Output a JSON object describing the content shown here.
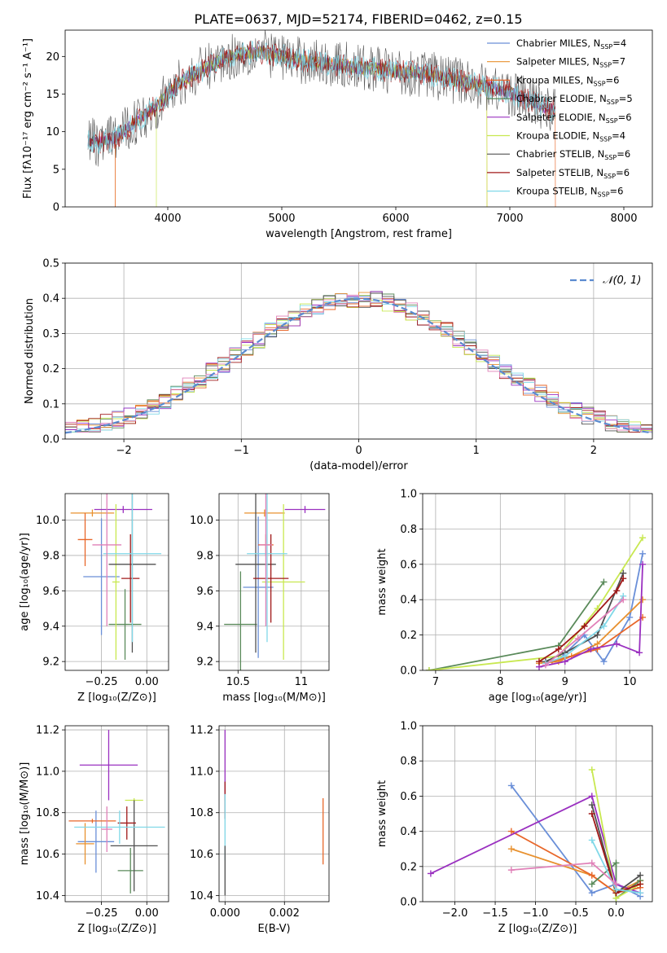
{
  "figure": {
    "title": "PLATE=0637, MJD=52174, FIBERID=0462, z=0.15",
    "colors": {
      "Chabrier MILES": "#6a8fd8",
      "Salpeter MILES": "#e8912f",
      "Kroupa MILES": "#e8672a",
      "Chabrier ELODIE": "#5a8a5a",
      "Salpeter ELODIE": "#9a30c0",
      "Kroupa ELODIE": "#c8e850",
      "Chabrier STELIB": "#505050",
      "Salpeter STELIB": "#a01818",
      "Kroupa STELIB": "#80d8e8",
      "pink": "#e080b8"
    }
  },
  "chart_data": [
    {
      "id": "spectrum",
      "type": "line",
      "xlabel": "wavelength [Angstrom, rest frame]",
      "ylabel": "Flux [fλ10⁻¹⁷ erg cm⁻² s⁻¹ A⁻¹]",
      "xlim": [
        3100,
        8250
      ],
      "ylim": [
        0,
        23.5
      ],
      "xticks": [
        4000,
        5000,
        6000,
        7000,
        8000
      ],
      "yticks": [
        0,
        5,
        10,
        15,
        20
      ],
      "grid": false,
      "legend_position": "top-right",
      "legend": [
        {
          "name": "Chabrier MILES, N",
          "sub": "SSP",
          "eq": "=4"
        },
        {
          "name": "Salpeter MILES, N",
          "sub": "SSP",
          "eq": "=7"
        },
        {
          "name": "Kroupa MILES, N",
          "sub": "SSP",
          "eq": "=6"
        },
        {
          "name": "Chabrier ELODIE, N",
          "sub": "SSP",
          "eq": "=5"
        },
        {
          "name": "Salpeter ELODIE, N",
          "sub": "SSP",
          "eq": "=6"
        },
        {
          "name": "Kroupa ELODIE, N",
          "sub": "SSP",
          "eq": "=4"
        },
        {
          "name": "Chabrier STELIB, N",
          "sub": "SSP",
          "eq": "=6"
        },
        {
          "name": "Salpeter STELIB, N",
          "sub": "SSP",
          "eq": "=6"
        },
        {
          "name": "Kroupa STELIB, N",
          "sub": "SSP",
          "eq": "=6"
        }
      ],
      "series_keys": [
        "Chabrier MILES",
        "Salpeter MILES",
        "Kroupa MILES",
        "Chabrier ELODIE",
        "Salpeter ELODIE",
        "Kroupa ELODIE",
        "Chabrier STELIB",
        "Salpeter STELIB",
        "Kroupa STELIB"
      ],
      "x": [
        3300,
        3400,
        3500,
        3600,
        3700,
        3800,
        3900,
        4000,
        4100,
        4200,
        4300,
        4400,
        4500,
        4600,
        4700,
        4800,
        4900,
        5000,
        5100,
        5200,
        5300,
        5400,
        5500,
        5600,
        5700,
        5800,
        5900,
        6000,
        6100,
        6200,
        6300,
        6400,
        6500,
        6600,
        6700,
        6800,
        6900,
        7000,
        7100,
        7200,
        7300,
        7400
      ],
      "y": [
        8.8,
        8.5,
        8.9,
        9.8,
        11.2,
        12.2,
        13.5,
        14.8,
        16.5,
        17.3,
        18.2,
        19.0,
        19.7,
        20.2,
        20.4,
        20.6,
        20.3,
        20.1,
        19.6,
        19.4,
        19.2,
        19.0,
        18.9,
        18.7,
        18.4,
        18.4,
        18.2,
        18.0,
        17.9,
        17.8,
        17.6,
        17.2,
        16.9,
        16.6,
        16.3,
        16.0,
        15.6,
        15.2,
        14.6,
        14.0,
        13.3,
        12.6
      ],
      "cutoffs": [
        {
          "key": "Kroupa MILES",
          "x_start": 3540,
          "x_end": 7400
        },
        {
          "key": "Kroupa ELODIE",
          "x_start": 3900,
          "x_end": 6800
        },
        {
          "key": "Salpeter MILES",
          "x_start": 3540,
          "x_end": 6800
        }
      ]
    },
    {
      "id": "residuals",
      "type": "step",
      "xlabel": "(data-model)/error",
      "ylabel": "Normed distribution",
      "xlim": [
        -2.5,
        2.5
      ],
      "ylim": [
        0,
        0.5
      ],
      "xticks": [
        -2,
        -1,
        0,
        1,
        2
      ],
      "yticks": [
        0.0,
        0.1,
        0.2,
        0.3,
        0.4,
        0.5
      ],
      "grid": true,
      "legend_position": "top-right",
      "legend": [
        {
          "name": "𝒩(0, 1)"
        }
      ],
      "bin_width": 0.1,
      "gaussian": {
        "mu": 0,
        "sigma": 1
      }
    },
    {
      "id": "age-vs-Z",
      "type": "errorbar",
      "xlabel": "Z [log₁₀(Z/Z⊙)]",
      "ylabel": "age  [log₁₀(age/yr)]",
      "xlim": [
        -0.45,
        0.12
      ],
      "ylim": [
        9.15,
        10.15
      ],
      "xticks": [
        -0.25,
        0.0
      ],
      "xticklabels": [
        "−0.25",
        "0.00"
      ],
      "yticks": [
        9.2,
        9.4,
        9.6,
        9.8,
        10.0
      ],
      "grid": true,
      "points": [
        {
          "key": "Chabrier MILES",
          "x": -0.25,
          "xerr": 0.1,
          "y": 9.68,
          "yerr": 0.33
        },
        {
          "key": "Salpeter MILES",
          "x": -0.3,
          "xerr": 0.12,
          "y": 10.04,
          "yerr": 0.02
        },
        {
          "key": "Kroupa MILES",
          "x": -0.34,
          "xerr": 0.04,
          "y": 9.89,
          "yerr": 0.15
        },
        {
          "key": "Chabrier ELODIE",
          "x": -0.12,
          "xerr": 0.09,
          "y": 9.41,
          "yerr": 0.2
        },
        {
          "key": "Salpeter ELODIE",
          "x": -0.13,
          "xerr": 0.16,
          "y": 10.06,
          "yerr": 0.02
        },
        {
          "key": "Kroupa ELODIE",
          "x": -0.17,
          "xerr": 0.02,
          "y": 9.65,
          "yerr": 0.44
        },
        {
          "key": "Chabrier STELIB",
          "x": -0.08,
          "xerr": 0.13,
          "y": 9.75,
          "yerr": 0.5
        },
        {
          "key": "Salpeter STELIB",
          "x": -0.09,
          "xerr": 0.05,
          "y": 9.67,
          "yerr": 0.25
        },
        {
          "key": "Kroupa STELIB",
          "x": -0.08,
          "xerr": 0.16,
          "y": 9.81,
          "yerr": 0.5
        },
        {
          "key": "pink",
          "x": -0.22,
          "xerr": 0.08,
          "y": 9.86,
          "yerr": 0.46
        }
      ]
    },
    {
      "id": "age-vs-mass",
      "type": "errorbar",
      "xlabel": "mass [log₁₀(M/M⊙)]",
      "ylabel": "",
      "xlim": [
        10.35,
        11.22
      ],
      "ylim": [
        9.15,
        10.15
      ],
      "xticks": [
        10.5,
        11.0
      ],
      "yticks": [
        9.2,
        9.4,
        9.6,
        9.8,
        10.0
      ],
      "grid": true,
      "points": [
        {
          "key": "Chabrier MILES",
          "x": 10.66,
          "xerr": 0.12,
          "y": 9.62,
          "yerr": 0.4
        },
        {
          "key": "Salpeter MILES",
          "x": 10.71,
          "xerr": 0.16,
          "y": 10.04,
          "yerr": 0.02
        },
        {
          "key": "Kroupa MILES",
          "x": 10.72,
          "xerr": 0.06,
          "y": 9.86,
          "yerr": 0.06
        },
        {
          "key": "Chabrier ELODIE",
          "x": 10.52,
          "xerr": 0.13,
          "y": 9.41,
          "yerr": 0.3
        },
        {
          "key": "Salpeter ELODIE",
          "x": 11.03,
          "xerr": 0.16,
          "y": 10.06,
          "yerr": 0.02
        },
        {
          "key": "Kroupa ELODIE",
          "x": 10.86,
          "xerr": 0.17,
          "y": 9.65,
          "yerr": 0.44
        },
        {
          "key": "Chabrier STELIB",
          "x": 10.64,
          "xerr": 0.16,
          "y": 9.75,
          "yerr": 0.5
        },
        {
          "key": "Salpeter STELIB",
          "x": 10.76,
          "xerr": 0.14,
          "y": 9.67,
          "yerr": 0.25
        },
        {
          "key": "Kroupa STELIB",
          "x": 10.73,
          "xerr": 0.16,
          "y": 9.81,
          "yerr": 0.5
        },
        {
          "key": "pink",
          "x": 10.72,
          "xerr": 0.05,
          "y": 9.86,
          "yerr": 0.46
        }
      ]
    },
    {
      "id": "weight-vs-age",
      "type": "line",
      "xlabel": "age  [log₁₀(age/yr)]",
      "ylabel": "mass weight",
      "xlim": [
        6.8,
        10.35
      ],
      "ylim": [
        0,
        1.0
      ],
      "xticks": [
        7,
        8,
        9,
        10
      ],
      "yticks": [
        0.0,
        0.2,
        0.4,
        0.6,
        0.8,
        1.0
      ],
      "grid": true,
      "series": [
        {
          "key": "Chabrier MILES",
          "points": [
            [
              8.9,
              0.06
            ],
            [
              9.3,
              0.2
            ],
            [
              9.6,
              0.05
            ],
            [
              10.0,
              0.3
            ],
            [
              10.2,
              0.66
            ]
          ]
        },
        {
          "key": "Salpeter MILES",
          "points": [
            [
              8.6,
              0.04
            ],
            [
              8.9,
              0.05
            ],
            [
              9.1,
              0.08
            ],
            [
              9.5,
              0.15
            ],
            [
              10.2,
              0.4
            ]
          ]
        },
        {
          "key": "Kroupa MILES",
          "points": [
            [
              8.8,
              0.05
            ],
            [
              9.0,
              0.07
            ],
            [
              9.5,
              0.12
            ],
            [
              10.2,
              0.3
            ]
          ]
        },
        {
          "key": "Chabrier ELODIE",
          "points": [
            [
              6.9,
              0.0
            ],
            [
              8.9,
              0.14
            ],
            [
              9.6,
              0.5
            ]
          ]
        },
        {
          "key": "Salpeter ELODIE",
          "points": [
            [
              8.6,
              0.02
            ],
            [
              9.0,
              0.05
            ],
            [
              9.4,
              0.12
            ],
            [
              9.8,
              0.15
            ],
            [
              10.15,
              0.1
            ],
            [
              10.2,
              0.6
            ]
          ]
        },
        {
          "key": "Kroupa ELODIE",
          "points": [
            [
              6.9,
              0.0
            ],
            [
              8.9,
              0.08
            ],
            [
              9.5,
              0.35
            ],
            [
              10.2,
              0.75
            ]
          ]
        },
        {
          "key": "Chabrier STELIB",
          "points": [
            [
              8.7,
              0.05
            ],
            [
              9.0,
              0.1
            ],
            [
              9.5,
              0.2
            ],
            [
              9.9,
              0.55
            ]
          ]
        },
        {
          "key": "Salpeter STELIB",
          "points": [
            [
              8.6,
              0.05
            ],
            [
              8.9,
              0.12
            ],
            [
              9.3,
              0.25
            ],
            [
              9.8,
              0.45
            ],
            [
              9.9,
              0.52
            ]
          ]
        },
        {
          "key": "Kroupa STELIB",
          "points": [
            [
              8.7,
              0.04
            ],
            [
              9.0,
              0.08
            ],
            [
              9.6,
              0.25
            ],
            [
              9.9,
              0.42
            ]
          ]
        },
        {
          "key": "pink",
          "points": [
            [
              8.7,
              0.03
            ],
            [
              9.2,
              0.18
            ],
            [
              9.9,
              0.4
            ]
          ]
        }
      ]
    },
    {
      "id": "mass-vs-Z",
      "type": "errorbar",
      "xlabel": "Z [log₁₀(Z/Z⊙)]",
      "ylabel": "mass [log₁₀(M/M⊙)]",
      "xlim": [
        -0.45,
        0.12
      ],
      "ylim": [
        10.37,
        11.22
      ],
      "xticks": [
        -0.25,
        0.0
      ],
      "xticklabels": [
        "−0.25",
        "0.00"
      ],
      "yticks": [
        10.4,
        10.6,
        10.8,
        11.0,
        11.2
      ],
      "grid": true,
      "points": [
        {
          "key": "Chabrier MILES",
          "x": -0.28,
          "xerr": 0.1,
          "y": 10.66,
          "yerr": 0.15
        },
        {
          "key": "Salpeter MILES",
          "x": -0.34,
          "xerr": 0.05,
          "y": 10.65,
          "yerr": 0.1
        },
        {
          "key": "Kroupa MILES",
          "x": -0.3,
          "xerr": 0.13,
          "y": 10.76,
          "yerr": 0.01
        },
        {
          "key": "Chabrier ELODIE",
          "x": -0.09,
          "xerr": 0.07,
          "y": 10.52,
          "yerr": 0.11
        },
        {
          "key": "Salpeter ELODIE",
          "x": -0.21,
          "xerr": 0.16,
          "y": 11.03,
          "yerr": 0.17
        },
        {
          "key": "Kroupa ELODIE",
          "x": -0.07,
          "xerr": 0.05,
          "y": 10.86,
          "yerr": 0.01
        },
        {
          "key": "Chabrier STELIB",
          "x": -0.07,
          "xerr": 0.13,
          "y": 10.64,
          "yerr": 0.22
        },
        {
          "key": "Salpeter STELIB",
          "x": -0.11,
          "xerr": 0.05,
          "y": 10.75,
          "yerr": 0.08
        },
        {
          "key": "Kroupa STELIB",
          "x": -0.15,
          "xerr": 0.25,
          "y": 10.73,
          "yerr": 0.08
        },
        {
          "key": "pink",
          "x": -0.22,
          "xerr": 0.03,
          "y": 10.72,
          "yerr": 0.11
        }
      ]
    },
    {
      "id": "mass-vs-EBV",
      "type": "errorbar",
      "xlabel": "E(B-V)",
      "ylabel": "",
      "xlim": [
        -0.0002,
        0.0035
      ],
      "ylim": [
        10.37,
        11.22
      ],
      "xticks": [
        0.0,
        0.002
      ],
      "xticklabels": [
        "0.000",
        "0.002"
      ],
      "yticks": [
        10.4,
        10.6,
        10.8,
        11.0,
        11.2
      ],
      "grid": true,
      "points": [
        {
          "key": "Salpeter ELODIE",
          "x": 0.0,
          "xerr": 0,
          "y": 11.03,
          "yerr": 0.17
        },
        {
          "key": "Salpeter STELIB",
          "x": 0.0,
          "xerr": 0,
          "y": 10.86,
          "yerr": 0.09
        },
        {
          "key": "Kroupa STELIB",
          "x": 0.0,
          "xerr": 0,
          "y": 10.73,
          "yerr": 0.16
        },
        {
          "key": "Chabrier STELIB",
          "x": 0.0,
          "xerr": 0,
          "y": 10.52,
          "yerr": 0.12
        },
        {
          "key": "Kroupa MILES",
          "x": 0.0033,
          "xerr": 0,
          "y": 10.71,
          "yerr": 0.16
        }
      ]
    },
    {
      "id": "weight-vs-Z",
      "type": "line",
      "xlabel": "Z [log₁₀(Z/Z⊙)]",
      "ylabel": "mass weight",
      "xlim": [
        -2.4,
        0.45
      ],
      "ylim": [
        0,
        1.0
      ],
      "xticks": [
        -2.0,
        -1.5,
        -1.0,
        -0.5,
        0.0
      ],
      "xticklabels": [
        "−2.0",
        "−1.5",
        "−1.0",
        "−0.5",
        "0.0"
      ],
      "yticks": [
        0.0,
        0.2,
        0.4,
        0.6,
        0.8,
        1.0
      ],
      "grid": true,
      "series": [
        {
          "key": "Chabrier MILES",
          "points": [
            [
              -1.3,
              0.66
            ],
            [
              -0.3,
              0.05
            ],
            [
              0.0,
              0.1
            ],
            [
              0.3,
              0.03
            ]
          ]
        },
        {
          "key": "Salpeter MILES",
          "points": [
            [
              -1.3,
              0.3
            ],
            [
              -0.3,
              0.15
            ],
            [
              0.0,
              0.05
            ],
            [
              0.3,
              0.12
            ]
          ]
        },
        {
          "key": "Kroupa MILES",
          "points": [
            [
              -1.3,
              0.4
            ],
            [
              -0.3,
              0.15
            ],
            [
              0.0,
              0.05
            ],
            [
              0.3,
              0.08
            ]
          ]
        },
        {
          "key": "Chabrier ELODIE",
          "points": [
            [
              -0.3,
              0.1
            ],
            [
              0.0,
              0.22
            ],
            [
              0.0,
              0.02
            ],
            [
              0.3,
              0.12
            ]
          ]
        },
        {
          "key": "Salpeter ELODIE",
          "points": [
            [
              -2.3,
              0.16
            ],
            [
              -0.3,
              0.6
            ],
            [
              0.0,
              0.1
            ],
            [
              0.3,
              0.05
            ]
          ]
        },
        {
          "key": "Kroupa ELODIE",
          "points": [
            [
              -0.3,
              0.75
            ],
            [
              0.0,
              0.02
            ],
            [
              0.3,
              0.1
            ]
          ]
        },
        {
          "key": "Chabrier STELIB",
          "points": [
            [
              -0.3,
              0.55
            ],
            [
              0.0,
              0.05
            ],
            [
              0.3,
              0.15
            ]
          ]
        },
        {
          "key": "Salpeter STELIB",
          "points": [
            [
              -0.3,
              0.5
            ],
            [
              0.0,
              0.05
            ],
            [
              0.3,
              0.1
            ]
          ]
        },
        {
          "key": "Kroupa STELIB",
          "points": [
            [
              -0.3,
              0.35
            ],
            [
              0.0,
              0.07
            ],
            [
              0.3,
              0.05
            ]
          ]
        },
        {
          "key": "pink",
          "points": [
            [
              -1.3,
              0.18
            ],
            [
              -0.3,
              0.22
            ],
            [
              0.0,
              0.1
            ]
          ]
        }
      ]
    }
  ]
}
